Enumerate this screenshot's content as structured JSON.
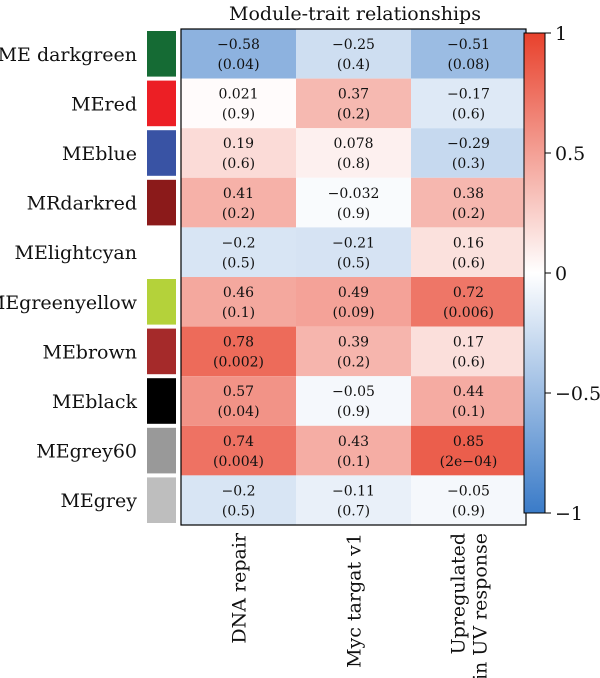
{
  "chart_data": {
    "type": "heatmap",
    "title": "Module-trait relationships",
    "rows": [
      {
        "name": "ME darkgreen",
        "color": "#156b34"
      },
      {
        "name": "MEred",
        "color": "#ec1f25"
      },
      {
        "name": "MEblue",
        "color": "#3953a4"
      },
      {
        "name": "MRdarkred",
        "color": "#8b1a1a"
      },
      {
        "name": "MElightcyan",
        "color": "#ffffff"
      },
      {
        "name": "MEgreenyellow",
        "color": "#b4d23a"
      },
      {
        "name": "MEbrown",
        "color": "#a52a2a"
      },
      {
        "name": "MEblack",
        "color": "#000000"
      },
      {
        "name": "MEgrey60",
        "color": "#999999"
      },
      {
        "name": "MEgrey",
        "color": "#bebebe"
      }
    ],
    "columns": [
      {
        "lines": [
          "DNA repair"
        ]
      },
      {
        "lines": [
          "Myc targat v1"
        ]
      },
      {
        "lines": [
          "Upregulated",
          "in UV response"
        ]
      }
    ],
    "values": [
      [
        -0.58,
        -0.25,
        -0.51
      ],
      [
        0.021,
        0.37,
        -0.17
      ],
      [
        0.19,
        0.078,
        -0.29
      ],
      [
        0.41,
        -0.032,
        0.38
      ],
      [
        -0.2,
        -0.21,
        0.16
      ],
      [
        0.46,
        0.49,
        0.72
      ],
      [
        0.78,
        0.39,
        0.17
      ],
      [
        0.57,
        -0.05,
        0.44
      ],
      [
        0.74,
        0.43,
        0.85
      ],
      [
        -0.2,
        -0.11,
        -0.05
      ]
    ],
    "value_labels": [
      [
        "−0.58",
        "−0.25",
        "−0.51"
      ],
      [
        "0.021",
        "0.37",
        "−0.17"
      ],
      [
        "0.19",
        "0.078",
        "−0.29"
      ],
      [
        "0.41",
        "−0.032",
        "0.38"
      ],
      [
        "−0.2",
        "−0.21",
        "0.16"
      ],
      [
        "0.46",
        "0.49",
        "0.72"
      ],
      [
        "0.78",
        "0.39",
        "0.17"
      ],
      [
        "0.57",
        "−0.05",
        "0.44"
      ],
      [
        "0.74",
        "0.43",
        "0.85"
      ],
      [
        "−0.2",
        "−0.11",
        "−0.05"
      ]
    ],
    "p_labels": [
      [
        "(0.04)",
        "(0.4)",
        "(0.08)"
      ],
      [
        "(0.9)",
        "(0.2)",
        "(0.6)"
      ],
      [
        "(0.6)",
        "(0.8)",
        "(0.3)"
      ],
      [
        "(0.2)",
        "(0.9)",
        "(0.2)"
      ],
      [
        "(0.5)",
        "(0.5)",
        "(0.6)"
      ],
      [
        "(0.1)",
        "(0.09)",
        "(0.006)"
      ],
      [
        "(0.002)",
        "(0.2)",
        "(0.6)"
      ],
      [
        "(0.04)",
        "(0.9)",
        "(0.1)"
      ],
      [
        "(0.004)",
        "(0.1)",
        "(2e−04)"
      ],
      [
        "(0.5)",
        "(0.7)",
        "(0.9)"
      ]
    ],
    "colorbar": {
      "range": [
        -1,
        1
      ],
      "ticks": [
        {
          "value": 1,
          "label": "1"
        },
        {
          "value": 0.5,
          "label": "0.5"
        },
        {
          "value": 0,
          "label": "0"
        },
        {
          "value": -0.5,
          "label": "−0.5"
        },
        {
          "value": -1,
          "label": "−1"
        }
      ],
      "low_color": "#3a7bc8",
      "mid_color": "#ffffff",
      "high_color": "#e8412c"
    }
  }
}
